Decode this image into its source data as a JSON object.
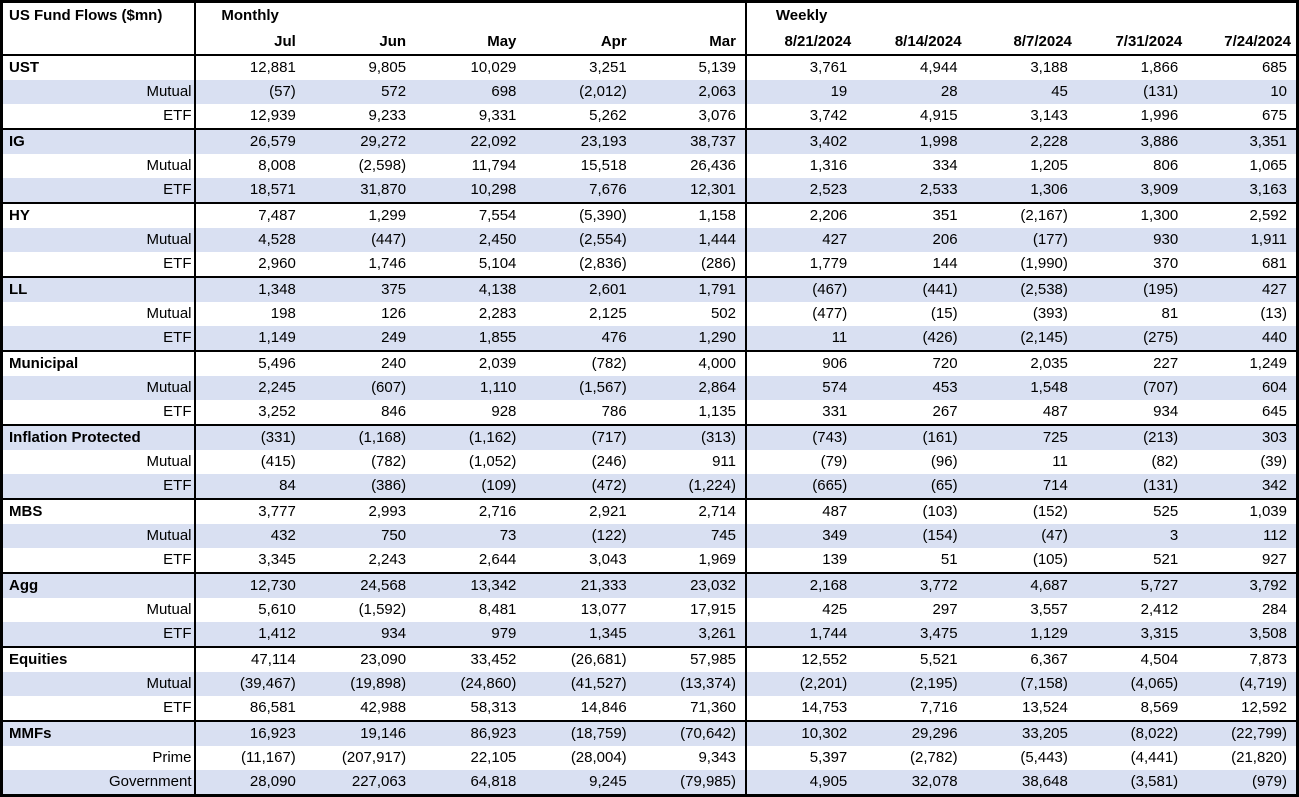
{
  "table": {
    "title": "US Fund Flows ($mn)",
    "monthly": {
      "label": "Monthly",
      "columns": [
        "Jul",
        "Jun",
        "May",
        "Apr",
        "Mar"
      ]
    },
    "weekly": {
      "label": "Weekly",
      "columns": [
        "8/21/2024",
        "8/14/2024",
        "8/7/2024",
        "7/31/2024",
        "7/24/2024"
      ]
    },
    "rows": [
      {
        "type": "category",
        "label": "UST",
        "monthly": [
          "12,881",
          "9,805",
          "10,029",
          "3,251",
          "5,139"
        ],
        "weekly": [
          "3,761",
          "4,944",
          "3,188",
          "1,866",
          "685"
        ]
      },
      {
        "type": "sub",
        "label": "Mutual",
        "monthly": [
          "(57)",
          "572",
          "698",
          "(2,012)",
          "2,063"
        ],
        "weekly": [
          "19",
          "28",
          "45",
          "(131)",
          "10"
        ]
      },
      {
        "type": "sub",
        "label": "ETF",
        "monthly": [
          "12,939",
          "9,233",
          "9,331",
          "5,262",
          "3,076"
        ],
        "weekly": [
          "3,742",
          "4,915",
          "3,143",
          "1,996",
          "675"
        ]
      },
      {
        "type": "category",
        "label": "IG",
        "monthly": [
          "26,579",
          "29,272",
          "22,092",
          "23,193",
          "38,737"
        ],
        "weekly": [
          "3,402",
          "1,998",
          "2,228",
          "3,886",
          "3,351"
        ]
      },
      {
        "type": "sub",
        "label": "Mutual",
        "monthly": [
          "8,008",
          "(2,598)",
          "11,794",
          "15,518",
          "26,436"
        ],
        "weekly": [
          "1,316",
          "334",
          "1,205",
          "806",
          "1,065"
        ]
      },
      {
        "type": "sub",
        "label": "ETF",
        "monthly": [
          "18,571",
          "31,870",
          "10,298",
          "7,676",
          "12,301"
        ],
        "weekly": [
          "2,523",
          "2,533",
          "1,306",
          "3,909",
          "3,163"
        ]
      },
      {
        "type": "category",
        "label": "HY",
        "monthly": [
          "7,487",
          "1,299",
          "7,554",
          "(5,390)",
          "1,158"
        ],
        "weekly": [
          "2,206",
          "351",
          "(2,167)",
          "1,300",
          "2,592"
        ]
      },
      {
        "type": "sub",
        "label": "Mutual",
        "monthly": [
          "4,528",
          "(447)",
          "2,450",
          "(2,554)",
          "1,444"
        ],
        "weekly": [
          "427",
          "206",
          "(177)",
          "930",
          "1,911"
        ]
      },
      {
        "type": "sub",
        "label": "ETF",
        "monthly": [
          "2,960",
          "1,746",
          "5,104",
          "(2,836)",
          "(286)"
        ],
        "weekly": [
          "1,779",
          "144",
          "(1,990)",
          "370",
          "681"
        ]
      },
      {
        "type": "category",
        "label": "LL",
        "monthly": [
          "1,348",
          "375",
          "4,138",
          "2,601",
          "1,791"
        ],
        "weekly": [
          "(467)",
          "(441)",
          "(2,538)",
          "(195)",
          "427"
        ]
      },
      {
        "type": "sub",
        "label": "Mutual",
        "monthly": [
          "198",
          "126",
          "2,283",
          "2,125",
          "502"
        ],
        "weekly": [
          "(477)",
          "(15)",
          "(393)",
          "81",
          "(13)"
        ]
      },
      {
        "type": "sub",
        "label": "ETF",
        "monthly": [
          "1,149",
          "249",
          "1,855",
          "476",
          "1,290"
        ],
        "weekly": [
          "11",
          "(426)",
          "(2,145)",
          "(275)",
          "440"
        ]
      },
      {
        "type": "category",
        "label": "Municipal",
        "monthly": [
          "5,496",
          "240",
          "2,039",
          "(782)",
          "4,000"
        ],
        "weekly": [
          "906",
          "720",
          "2,035",
          "227",
          "1,249"
        ]
      },
      {
        "type": "sub",
        "label": "Mutual",
        "monthly": [
          "2,245",
          "(607)",
          "1,110",
          "(1,567)",
          "2,864"
        ],
        "weekly": [
          "574",
          "453",
          "1,548",
          "(707)",
          "604"
        ]
      },
      {
        "type": "sub",
        "label": "ETF",
        "monthly": [
          "3,252",
          "846",
          "928",
          "786",
          "1,135"
        ],
        "weekly": [
          "331",
          "267",
          "487",
          "934",
          "645"
        ]
      },
      {
        "type": "category",
        "label": "Inflation Protected",
        "monthly": [
          "(331)",
          "(1,168)",
          "(1,162)",
          "(717)",
          "(313)"
        ],
        "weekly": [
          "(743)",
          "(161)",
          "725",
          "(213)",
          "303"
        ]
      },
      {
        "type": "sub",
        "label": "Mutual",
        "monthly": [
          "(415)",
          "(782)",
          "(1,052)",
          "(246)",
          "911"
        ],
        "weekly": [
          "(79)",
          "(96)",
          "11",
          "(82)",
          "(39)"
        ]
      },
      {
        "type": "sub",
        "label": "ETF",
        "monthly": [
          "84",
          "(386)",
          "(109)",
          "(472)",
          "(1,224)"
        ],
        "weekly": [
          "(665)",
          "(65)",
          "714",
          "(131)",
          "342"
        ]
      },
      {
        "type": "category",
        "label": "MBS",
        "monthly": [
          "3,777",
          "2,993",
          "2,716",
          "2,921",
          "2,714"
        ],
        "weekly": [
          "487",
          "(103)",
          "(152)",
          "525",
          "1,039"
        ]
      },
      {
        "type": "sub",
        "label": "Mutual",
        "monthly": [
          "432",
          "750",
          "73",
          "(122)",
          "745"
        ],
        "weekly": [
          "349",
          "(154)",
          "(47)",
          "3",
          "112"
        ]
      },
      {
        "type": "sub",
        "label": "ETF",
        "monthly": [
          "3,345",
          "2,243",
          "2,644",
          "3,043",
          "1,969"
        ],
        "weekly": [
          "139",
          "51",
          "(105)",
          "521",
          "927"
        ]
      },
      {
        "type": "category",
        "label": "Agg",
        "monthly": [
          "12,730",
          "24,568",
          "13,342",
          "21,333",
          "23,032"
        ],
        "weekly": [
          "2,168",
          "3,772",
          "4,687",
          "5,727",
          "3,792"
        ]
      },
      {
        "type": "sub",
        "label": "Mutual",
        "monthly": [
          "5,610",
          "(1,592)",
          "8,481",
          "13,077",
          "17,915"
        ],
        "weekly": [
          "425",
          "297",
          "3,557",
          "2,412",
          "284"
        ]
      },
      {
        "type": "sub",
        "label": "ETF",
        "monthly": [
          "1,412",
          "934",
          "979",
          "1,345",
          "3,261"
        ],
        "weekly": [
          "1,744",
          "3,475",
          "1,129",
          "3,315",
          "3,508"
        ]
      },
      {
        "type": "category",
        "label": "Equities",
        "monthly": [
          "47,114",
          "23,090",
          "33,452",
          "(26,681)",
          "57,985"
        ],
        "weekly": [
          "12,552",
          "5,521",
          "6,367",
          "4,504",
          "7,873"
        ]
      },
      {
        "type": "sub",
        "label": "Mutual",
        "monthly": [
          "(39,467)",
          "(19,898)",
          "(24,860)",
          "(41,527)",
          "(13,374)"
        ],
        "weekly": [
          "(2,201)",
          "(2,195)",
          "(7,158)",
          "(4,065)",
          "(4,719)"
        ]
      },
      {
        "type": "sub",
        "label": "ETF",
        "monthly": [
          "86,581",
          "42,988",
          "58,313",
          "14,846",
          "71,360"
        ],
        "weekly": [
          "14,753",
          "7,716",
          "13,524",
          "8,569",
          "12,592"
        ]
      },
      {
        "type": "category",
        "label": "MMFs",
        "monthly": [
          "16,923",
          "19,146",
          "86,923",
          "(18,759)",
          "(70,642)"
        ],
        "weekly": [
          "10,302",
          "29,296",
          "33,205",
          "(8,022)",
          "(22,799)"
        ]
      },
      {
        "type": "sub",
        "label": "Prime",
        "monthly": [
          "(11,167)",
          "(207,917)",
          "22,105",
          "(28,004)",
          "9,343"
        ],
        "weekly": [
          "5,397",
          "(2,782)",
          "(5,443)",
          "(4,441)",
          "(21,820)"
        ]
      },
      {
        "type": "sub",
        "label": "Government",
        "monthly": [
          "28,090",
          "227,063",
          "64,818",
          "9,245",
          "(79,985)"
        ],
        "weekly": [
          "4,905",
          "32,078",
          "38,648",
          "(3,581)",
          "(979)"
        ]
      }
    ]
  },
  "colors": {
    "stripe": "#d9e0f2",
    "border": "#000000",
    "background": "#ffffff",
    "text": "#000000"
  }
}
